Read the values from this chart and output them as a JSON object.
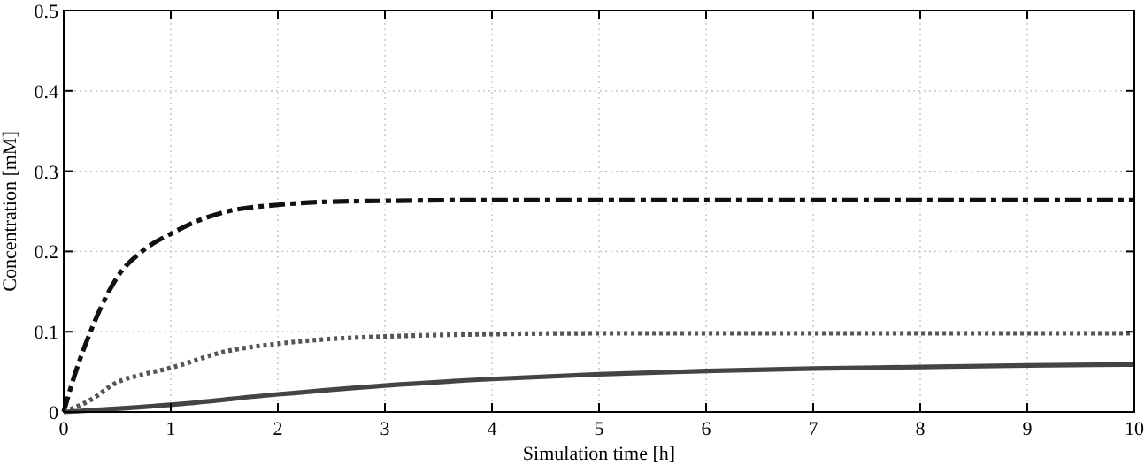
{
  "chart_data": {
    "type": "line",
    "xlabel": "Simulation time [h]",
    "ylabel": "Concentration [mM]",
    "xlim": [
      0,
      10
    ],
    "ylim": [
      0,
      0.5
    ],
    "xticks": [
      0,
      1,
      2,
      3,
      4,
      5,
      6,
      7,
      8,
      9,
      10
    ],
    "yticks": [
      0,
      0.1,
      0.2,
      0.3,
      0.4,
      0.5
    ],
    "grid": true,
    "series": [
      {
        "color": "#111111",
        "line_style": "dashed",
        "x": [
          0,
          0.1,
          0.25,
          0.5,
          0.75,
          1,
          1.25,
          1.5,
          2,
          2.5,
          3,
          4,
          5,
          6,
          7,
          8,
          9,
          10
        ],
        "values": [
          0,
          0.045,
          0.1,
          0.168,
          0.202,
          0.222,
          0.238,
          0.249,
          0.258,
          0.262,
          0.263,
          0.264,
          0.264,
          0.264,
          0.264,
          0.264,
          0.264,
          0.264
        ]
      },
      {
        "color": "#555555",
        "line_style": "dotted",
        "x": [
          0,
          0.25,
          0.5,
          0.75,
          1,
          1.5,
          2,
          2.5,
          3,
          4,
          5,
          6,
          7,
          8,
          9,
          10
        ],
        "values": [
          0,
          0.015,
          0.037,
          0.047,
          0.055,
          0.075,
          0.085,
          0.091,
          0.094,
          0.097,
          0.098,
          0.098,
          0.098,
          0.098,
          0.098,
          0.098
        ]
      },
      {
        "color": "#444444",
        "line_style": "solid",
        "x": [
          0,
          1,
          2,
          3,
          4,
          5,
          6,
          7,
          8,
          9,
          10
        ],
        "values": [
          0,
          0.009,
          0.022,
          0.033,
          0.041,
          0.047,
          0.051,
          0.054,
          0.056,
          0.058,
          0.059
        ]
      }
    ]
  }
}
